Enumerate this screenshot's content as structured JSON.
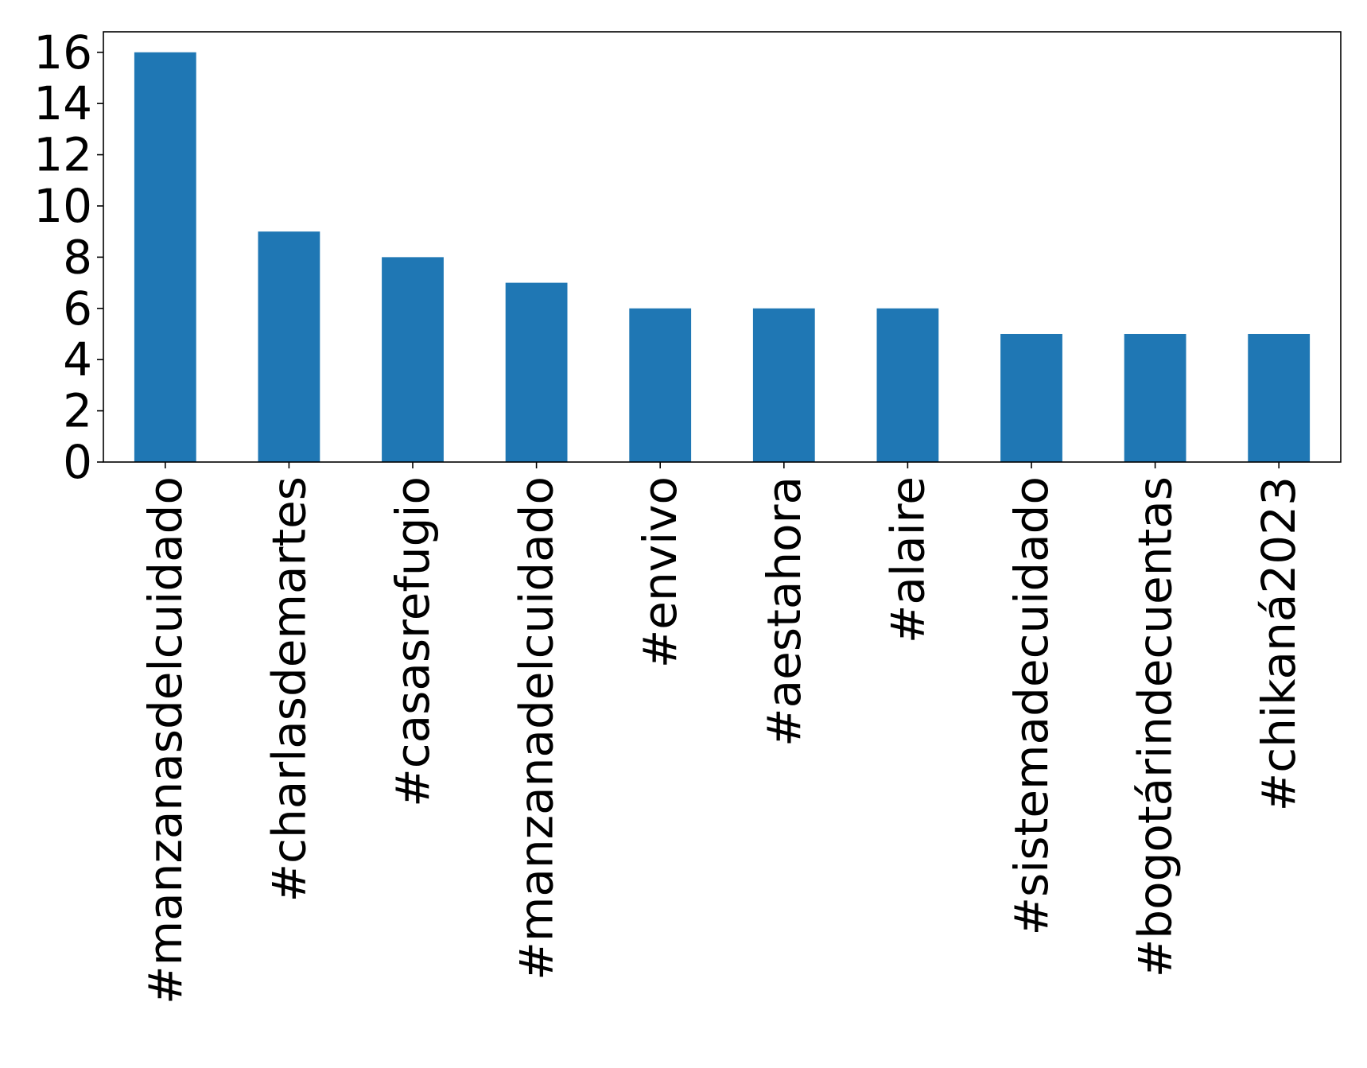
{
  "chart_data": {
    "type": "bar",
    "title": "",
    "xlabel": "",
    "ylabel": "",
    "categories": [
      "#manzanasdelcuidado",
      "#charlasdemartes",
      "#casasrefugio",
      "#manzanadelcuidado",
      "#envivo",
      "#aestahora",
      "#alaire",
      "#sistemadecuidado",
      "#bogotárindecuentas",
      "#chikaná2023"
    ],
    "values": [
      16,
      9,
      8,
      7,
      6,
      6,
      6,
      5,
      5,
      5
    ],
    "ylim": [
      0,
      16.8
    ],
    "yticks": [
      0,
      2,
      4,
      6,
      8,
      10,
      12,
      14,
      16
    ],
    "grid": false,
    "legend": "none",
    "bar_color": "#1f77b4"
  }
}
